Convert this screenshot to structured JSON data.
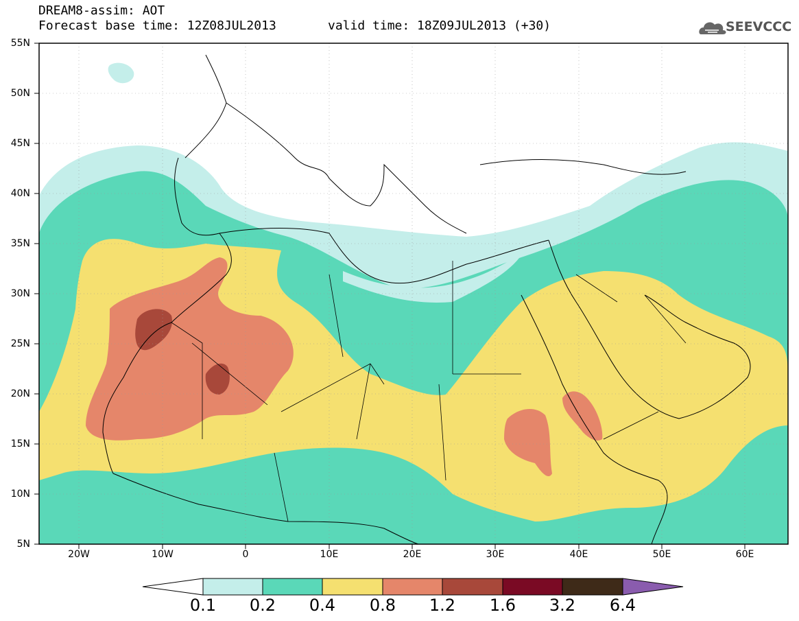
{
  "header": {
    "title": "DREAM8-assim: AOT",
    "forecast_base": "Forecast base time: 12Z08JUL2013",
    "valid_time": "valid time: 18Z09JUL2013 (+30)",
    "logo_text": "SEEVCCC"
  },
  "map": {
    "lat_labels": [
      "55N",
      "50N",
      "45N",
      "40N",
      "35N",
      "30N",
      "25N",
      "20N",
      "15N",
      "10N",
      "5N"
    ],
    "lon_labels": [
      "20W",
      "10W",
      "0",
      "10E",
      "20E",
      "30E",
      "40E",
      "50E",
      "60E"
    ],
    "lat_range": [
      5,
      55
    ],
    "lon_range": [
      -25,
      65
    ]
  },
  "colorbar": {
    "levels": [
      "0.1",
      "0.2",
      "0.4",
      "0.8",
      "1.2",
      "1.6",
      "3.2",
      "6.4"
    ],
    "colors": [
      "#ffffff",
      "#c4eeea",
      "#5ad8b8",
      "#f5e070",
      "#e5866a",
      "#a8483a",
      "#7a0a24",
      "#3e2a18",
      "#8a5cae"
    ]
  }
}
